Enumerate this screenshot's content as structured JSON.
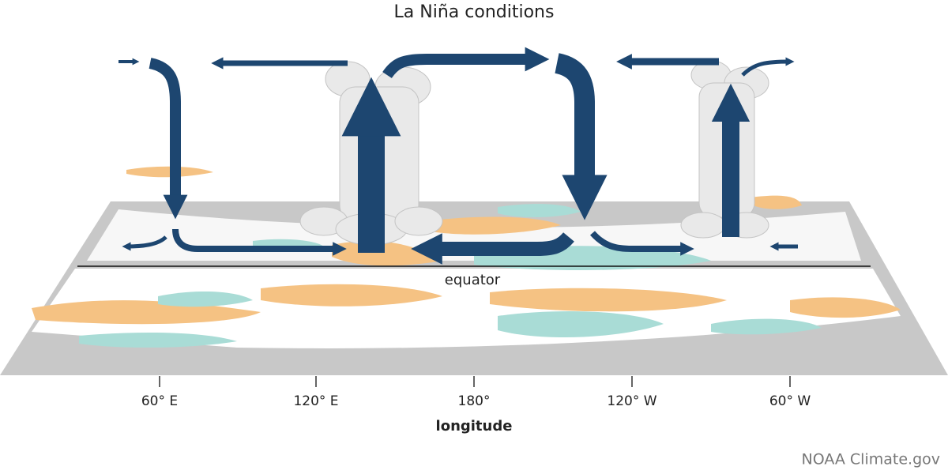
{
  "title": "La Niña conditions",
  "equator_label": "equator",
  "axis": {
    "ticks": [
      "60° E",
      "120° E",
      "180°",
      "120° W",
      "60° W"
    ],
    "label": "longitude"
  },
  "credit": "NOAA Climate.gov"
}
